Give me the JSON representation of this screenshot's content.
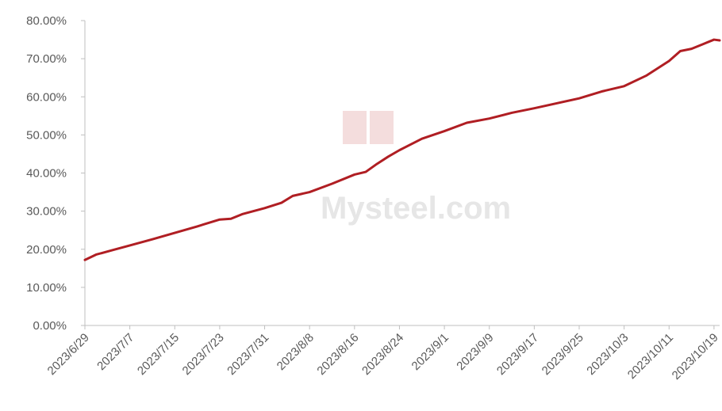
{
  "chart_data": {
    "type": "line",
    "title": "",
    "xlabel": "",
    "ylabel": "",
    "ylim": [
      0,
      80
    ],
    "y_ticks": [
      "0.00%",
      "10.00%",
      "20.00%",
      "30.00%",
      "40.00%",
      "50.00%",
      "60.00%",
      "70.00%",
      "80.00%"
    ],
    "x_tick_labels": [
      "2023/6/29",
      "2023/7/7",
      "2023/7/15",
      "2023/7/23",
      "2023/7/31",
      "2023/8/8",
      "2023/8/16",
      "2023/8/24",
      "2023/9/1",
      "2023/9/9",
      "2023/9/17",
      "2023/9/25",
      "2023/10/3",
      "2023/10/11",
      "2023/10/19"
    ],
    "x_range": [
      "2023/6/29",
      "2023/10/20"
    ],
    "grid": false,
    "legend": "none",
    "series": [
      {
        "color": "#b01e23",
        "points": [
          [
            "2023/6/29",
            17.2
          ],
          [
            "2023/7/1",
            18.6
          ],
          [
            "2023/7/4",
            19.8
          ],
          [
            "2023/7/7",
            21.0
          ],
          [
            "2023/7/11",
            22.6
          ],
          [
            "2023/7/15",
            24.3
          ],
          [
            "2023/7/19",
            26.0
          ],
          [
            "2023/7/23",
            27.8
          ],
          [
            "2023/7/25",
            28.0
          ],
          [
            "2023/7/27",
            29.2
          ],
          [
            "2023/7/31",
            30.8
          ],
          [
            "2023/8/3",
            32.2
          ],
          [
            "2023/8/5",
            34.0
          ],
          [
            "2023/8/8",
            35.0
          ],
          [
            "2023/8/12",
            37.2
          ],
          [
            "2023/8/16",
            39.6
          ],
          [
            "2023/8/18",
            40.3
          ],
          [
            "2023/8/20",
            42.4
          ],
          [
            "2023/8/22",
            44.3
          ],
          [
            "2023/8/24",
            46.0
          ],
          [
            "2023/8/28",
            49.0
          ],
          [
            "2023/9/1",
            51.0
          ],
          [
            "2023/9/5",
            53.2
          ],
          [
            "2023/9/9",
            54.3
          ],
          [
            "2023/9/13",
            55.8
          ],
          [
            "2023/9/17",
            57.0
          ],
          [
            "2023/9/21",
            58.3
          ],
          [
            "2023/9/25",
            59.6
          ],
          [
            "2023/9/29",
            61.4
          ],
          [
            "2023/10/3",
            62.8
          ],
          [
            "2023/10/7",
            65.6
          ],
          [
            "2023/10/11",
            69.4
          ],
          [
            "2023/10/13",
            72.0
          ],
          [
            "2023/10/15",
            72.6
          ],
          [
            "2023/10/17",
            73.8
          ],
          [
            "2023/10/19",
            75.0
          ],
          [
            "2023/10/20",
            74.8
          ]
        ]
      }
    ]
  },
  "watermark": {
    "text": "Mysteel.com"
  }
}
